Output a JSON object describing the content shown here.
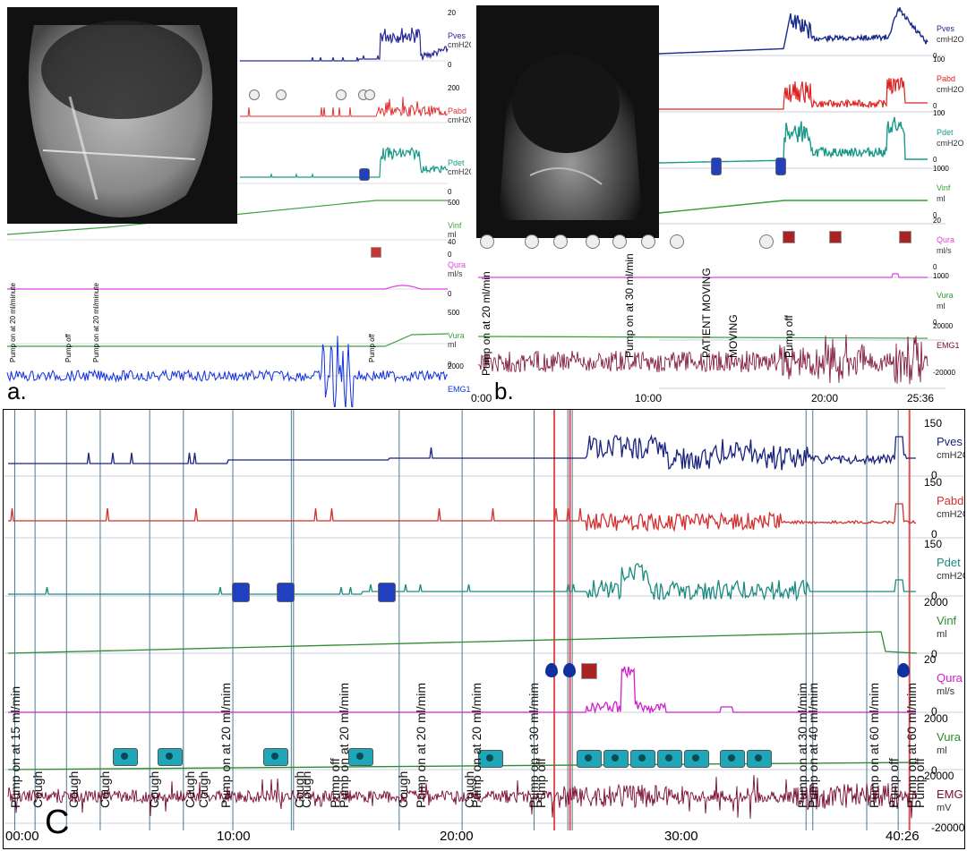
{
  "panels": {
    "a": {
      "label": "a.",
      "channels": [
        {
          "name": "Pves",
          "unit": "cmH2O",
          "top": "20",
          "bottom": "0"
        },
        {
          "name": "Pabd",
          "unit": "cmH2O",
          "top": "200",
          "bottom": ""
        },
        {
          "name": "Pdet",
          "unit": "cmH2O",
          "top": "",
          "bottom": "0"
        },
        {
          "name": "Vinf",
          "unit": "ml",
          "top": "500",
          "bottom": "0"
        },
        {
          "name": "Qura",
          "unit": "ml/s",
          "top": "40",
          "bottom": "0"
        },
        {
          "name": "Vura",
          "unit": "ml",
          "top": "500",
          "bottom": "0"
        },
        {
          "name": "EMG1",
          "unit": "",
          "top": "2000",
          "bottom": "-2000"
        }
      ],
      "event_labels": [
        "Pump on at 20 ml/minute",
        "Pump off",
        "Pump on at 20 ml/minute",
        "Pump off"
      ],
      "colors": {
        "Pves": "#2a2a9a",
        "Pabd": "#e03030",
        "Pdet": "#1a9a8a",
        "Vinf": "#40a040",
        "Qura": "#e040e0",
        "Vura": "#40a040",
        "EMG1": "#1030e0"
      }
    },
    "b": {
      "label": "b.",
      "channels": [
        {
          "name": "Pves",
          "unit": "cmH2O",
          "top": "",
          "bottom": "0"
        },
        {
          "name": "Pabd",
          "unit": "cmH2O",
          "top": "100",
          "bottom": "0"
        },
        {
          "name": "Pdet",
          "unit": "cmH2O",
          "top": "100",
          "bottom": "0"
        },
        {
          "name": "Vinf",
          "unit": "ml",
          "top": "1000",
          "bottom": "0"
        },
        {
          "name": "Qura",
          "unit": "ml/s",
          "top": "20",
          "bottom": "0"
        },
        {
          "name": "Vura",
          "unit": "ml",
          "top": "1000",
          "bottom": "0"
        },
        {
          "name": "EMG1",
          "unit": "",
          "top": "20000",
          "bottom": "-20000"
        }
      ],
      "event_labels": [
        "Pump on at 20 ml/min",
        "Pump on at 30 ml/min",
        "PATIENT MOVING",
        "MOVING",
        "Pump off"
      ],
      "x_ticks": [
        "0:00",
        "10:00",
        "20:00",
        "25:36"
      ],
      "colors": {
        "Pves": "#1a2a8a",
        "Pabd": "#e02020",
        "Pdet": "#1a9a8a",
        "Vinf": "#30a030",
        "Qura": "#e040e0",
        "Vura": "#30a030",
        "EMG1": "#7a0a30"
      }
    },
    "c": {
      "label": "C",
      "channels": [
        {
          "name": "Pves",
          "unit": "cmH2O",
          "top": "150",
          "bottom": "0"
        },
        {
          "name": "Pabd",
          "unit": "cmH2O",
          "top": "150",
          "bottom": "0"
        },
        {
          "name": "Pdet",
          "unit": "cmH2O",
          "top": "150",
          "bottom": "0"
        },
        {
          "name": "Vinf",
          "unit": "ml",
          "top": "2000",
          "bottom": "0"
        },
        {
          "name": "Qura",
          "unit": "ml/s",
          "top": "20",
          "bottom": "0"
        },
        {
          "name": "Vura",
          "unit": "ml",
          "top": "2000",
          "bottom": "0"
        },
        {
          "name": "EMG",
          "unit": "mV",
          "top": "20000",
          "bottom": "-20000"
        }
      ],
      "event_labels": [
        "Pump on at 15 ml/min",
        "Cough",
        "Cough",
        "Cough",
        "Cough",
        "Cough",
        "Cough",
        "Pump on at 20 ml/mim",
        "Cough",
        "Cough",
        "Pump off",
        "Pump on at 20 ml/mim",
        "Cough",
        "Pump on at 20 ml/mim",
        "Cough",
        "Pump on at 20 ml/mim",
        "Pump on at 30 ml/mim",
        "Pump off",
        "Pump on at 30 ml/mim",
        "Pump on at 40 ml/mim",
        "Pump on at 60 ml/mim",
        "Pump off",
        "Pump on at 60 ml/mim",
        "Pump off"
      ],
      "x_ticks": [
        "00:00",
        "10:00",
        "20:00",
        "30:00",
        "40:26"
      ],
      "colors": {
        "Pves": "#1a237e",
        "Pabd": "#d32f2f",
        "Pdet": "#1a8a80",
        "Vinf": "#2e8b2e",
        "Qura": "#d020d0",
        "Vura": "#2e8b2e",
        "EMG": "#7a0a30",
        "marker": "#4a7a90",
        "marker_red": "#e05050"
      }
    }
  }
}
